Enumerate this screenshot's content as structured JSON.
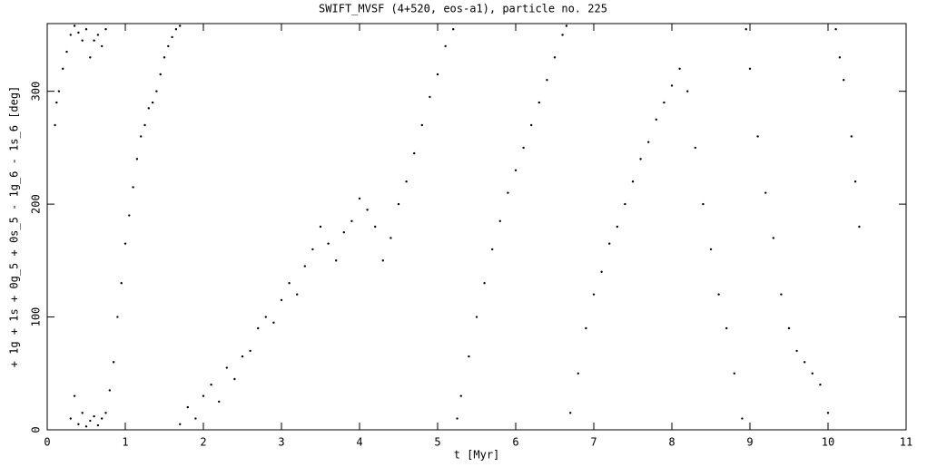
{
  "chart_data": {
    "type": "scatter",
    "title": "SWIFT_MVSF (4+520, eos-a1), particle no. 225",
    "x_label": "t [Myr]",
    "y_label": "+ 1g + 1s + 0g_5 + 0s_5 - 1g_6 - 1s_6 [deg]",
    "color": "#000000",
    "xlim": [
      0,
      11
    ],
    "ylim": [
      0,
      360
    ],
    "xticks": [
      0,
      1,
      2,
      3,
      4,
      5,
      6,
      7,
      8,
      9,
      10,
      11
    ],
    "yticks": [
      0,
      100,
      200,
      300
    ],
    "x": [
      0.1,
      0.12,
      0.15,
      0.2,
      0.25,
      0.3,
      0.35,
      0.4,
      0.45,
      0.5,
      0.55,
      0.6,
      0.65,
      0.7,
      0.75,
      0.3,
      0.35,
      0.4,
      0.45,
      0.5,
      0.55,
      0.6,
      0.65,
      0.7,
      0.75,
      0.8,
      0.85,
      0.9,
      0.95,
      1.0,
      1.05,
      1.1,
      1.15,
      1.2,
      1.25,
      1.3,
      1.35,
      1.4,
      1.45,
      1.5,
      1.55,
      1.6,
      1.65,
      1.7,
      1.7,
      1.8,
      1.9,
      2.0,
      2.1,
      2.2,
      2.3,
      2.4,
      2.5,
      2.6,
      2.7,
      2.8,
      2.9,
      3.0,
      3.1,
      3.2,
      3.3,
      3.4,
      3.5,
      3.6,
      3.7,
      3.8,
      3.9,
      4.0,
      4.1,
      4.2,
      4.3,
      4.4,
      4.5,
      4.6,
      4.7,
      4.8,
      4.9,
      5.0,
      5.1,
      5.2,
      5.25,
      5.3,
      5.4,
      5.5,
      5.6,
      5.7,
      5.8,
      5.9,
      6.0,
      6.1,
      6.2,
      6.3,
      6.4,
      6.5,
      6.6,
      6.65,
      6.7,
      6.8,
      6.9,
      7.0,
      7.1,
      7.2,
      7.3,
      7.4,
      7.5,
      7.6,
      7.7,
      7.8,
      7.9,
      8.0,
      8.1,
      8.2,
      8.3,
      8.4,
      8.5,
      8.6,
      8.7,
      8.8,
      8.9,
      8.95,
      9.0,
      9.1,
      9.2,
      9.3,
      9.4,
      9.5,
      9.6,
      9.7,
      9.8,
      9.9,
      10.0,
      10.1,
      10.15,
      10.2,
      10.3,
      10.35,
      10.4
    ],
    "y": [
      270,
      290,
      300,
      320,
      335,
      350,
      358,
      352,
      345,
      355,
      330,
      345,
      350,
      340,
      355,
      10,
      30,
      5,
      15,
      3,
      8,
      12,
      4,
      10,
      15,
      35,
      60,
      100,
      130,
      165,
      190,
      215,
      240,
      260,
      270,
      285,
      290,
      300,
      315,
      330,
      340,
      348,
      355,
      358,
      5,
      20,
      10,
      30,
      40,
      25,
      55,
      45,
      65,
      70,
      90,
      100,
      95,
      115,
      130,
      120,
      145,
      160,
      180,
      165,
      150,
      175,
      185,
      205,
      195,
      180,
      150,
      170,
      200,
      220,
      245,
      270,
      295,
      315,
      340,
      355,
      10,
      30,
      65,
      100,
      130,
      160,
      185,
      210,
      230,
      250,
      270,
      290,
      310,
      330,
      350,
      358,
      15,
      50,
      90,
      120,
      140,
      165,
      180,
      200,
      220,
      240,
      255,
      275,
      290,
      305,
      320,
      300,
      250,
      200,
      160,
      120,
      90,
      50,
      10,
      355,
      320,
      260,
      210,
      170,
      120,
      90,
      70,
      60,
      50,
      40,
      15,
      355,
      330,
      310,
      260,
      220,
      180
    ]
  }
}
